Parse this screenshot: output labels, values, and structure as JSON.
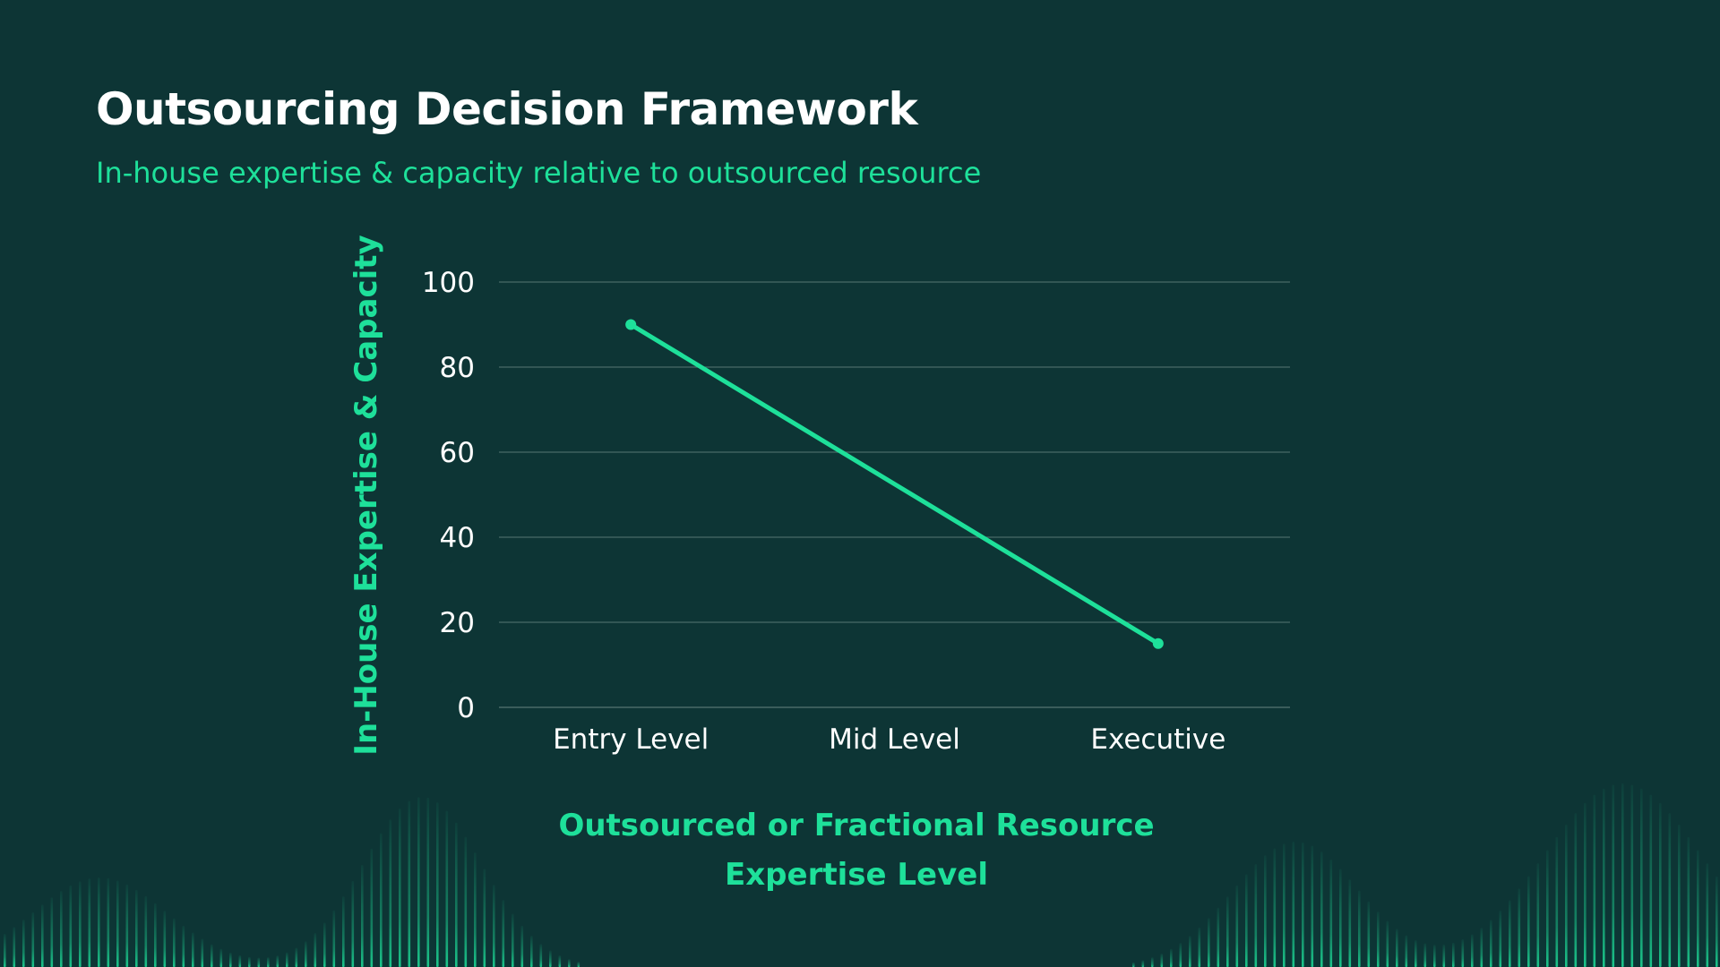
{
  "slide": {
    "title": "Outsourcing Decision Framework",
    "subtitle": "In-house expertise & capacity relative to outsourced resource"
  },
  "colors": {
    "background": "#0d3535",
    "accent": "#1ee09a",
    "title": "#ffffff",
    "tick_text": "#ffffff",
    "grid": "#4a6b68"
  },
  "chart_data": {
    "type": "line",
    "title": "",
    "categories": [
      "Entry Level",
      "Mid Level",
      "Executive"
    ],
    "series": [
      {
        "values": [
          90,
          52.5,
          15
        ]
      }
    ],
    "xlabel_lines": [
      "Outsourced or Fractional Resource",
      "Expertise Level"
    ],
    "ylabel": "In-House Expertise & Capacity",
    "ylim": [
      0,
      100
    ],
    "yticks": [
      0,
      20,
      40,
      60,
      80,
      100
    ],
    "grid": true,
    "legend": "none",
    "markers": "endpoints"
  }
}
